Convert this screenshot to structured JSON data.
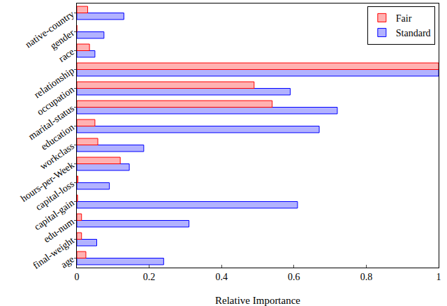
{
  "chart_data": {
    "type": "bar",
    "orientation": "horizontal",
    "x_label": "Relative Importance",
    "categories": [
      "age",
      "final-weight",
      "edu-num",
      "capital-gain",
      "capital-loss",
      "hours-per-Week",
      "workclass",
      "education",
      "marital-status",
      "occupation",
      "relationship",
      "race",
      "gender",
      "native-country"
    ],
    "series": [
      {
        "name": "Fair",
        "color": "#ff0000",
        "values": [
          0.025,
          0.013,
          0.013,
          0.002,
          0.003,
          0.12,
          0.058,
          0.05,
          0.54,
          0.49,
          1,
          0.035,
          0,
          0.03
        ]
      },
      {
        "name": "Standard",
        "color": "#0000ff",
        "values": [
          0.24,
          0.055,
          0.31,
          0.61,
          0.09,
          0.145,
          0.185,
          0.67,
          0.72,
          0.59,
          1,
          0.05,
          0.075,
          0.13
        ]
      }
    ],
    "xlim": [
      0,
      1
    ],
    "xticks": [
      0,
      0.2,
      0.4,
      0.6,
      0.8,
      1
    ],
    "grid": false,
    "legend": "upper right"
  }
}
